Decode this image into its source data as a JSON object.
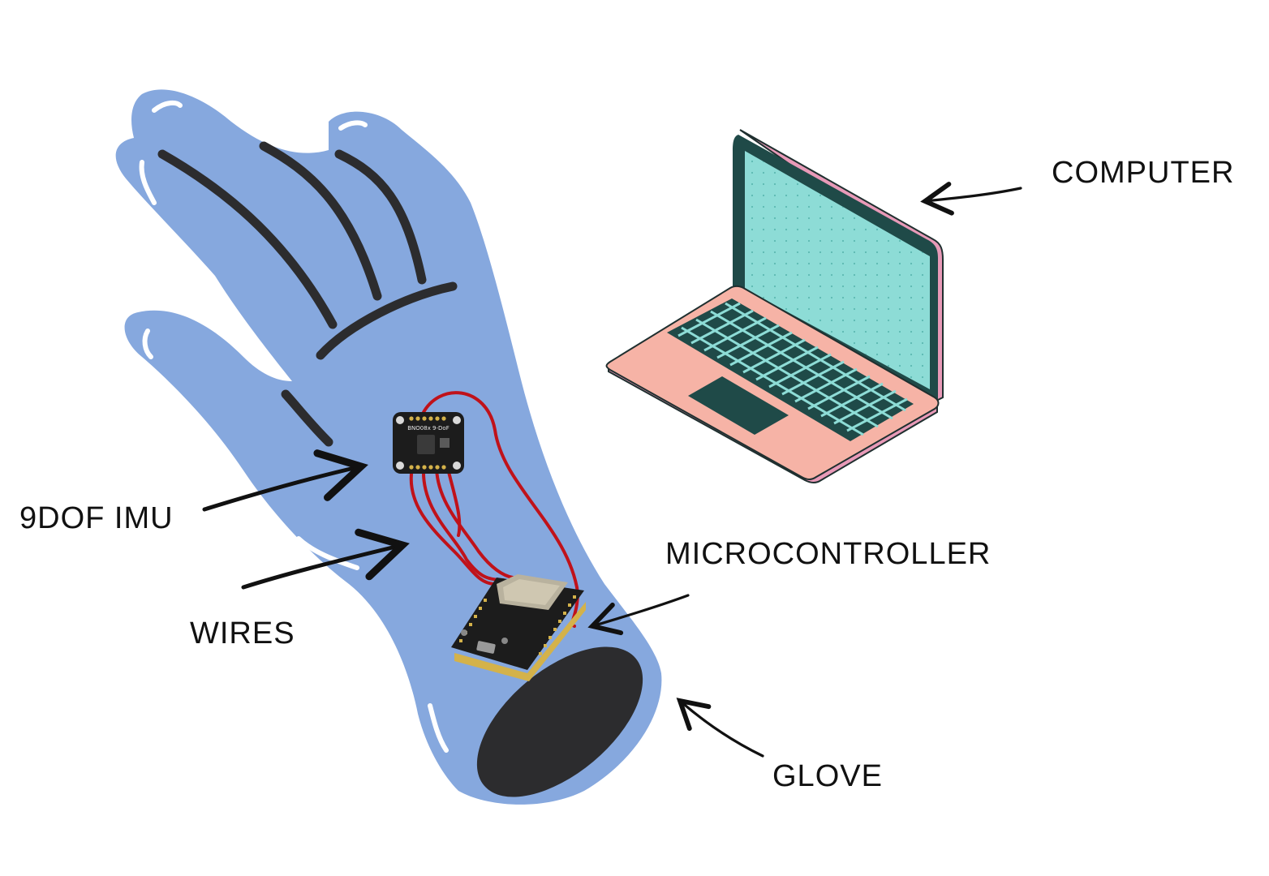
{
  "labels": {
    "computer": "COMPUTER",
    "imu": "9DOF IMU",
    "microcontroller": "MICROCONTROLLER",
    "wires": "WIRES",
    "glove": "GLOVE"
  },
  "imu_board_text": "BNO08x 9-DoF",
  "colors": {
    "glove": "#86a8de",
    "glove_dark": "#2c2c2e",
    "screen": "#8ddcd6",
    "screen_frame": "#1f4a48",
    "laptop_body": "#f6b3a6",
    "laptop_edge": "#e89ab8",
    "wire": "#c0121a",
    "pcb": "#1c1c1c",
    "header_pins": "#d4b24a",
    "ink": "#111111"
  },
  "icons": [
    "glove-illustration",
    "laptop-illustration",
    "imu-board",
    "microcontroller-board"
  ]
}
